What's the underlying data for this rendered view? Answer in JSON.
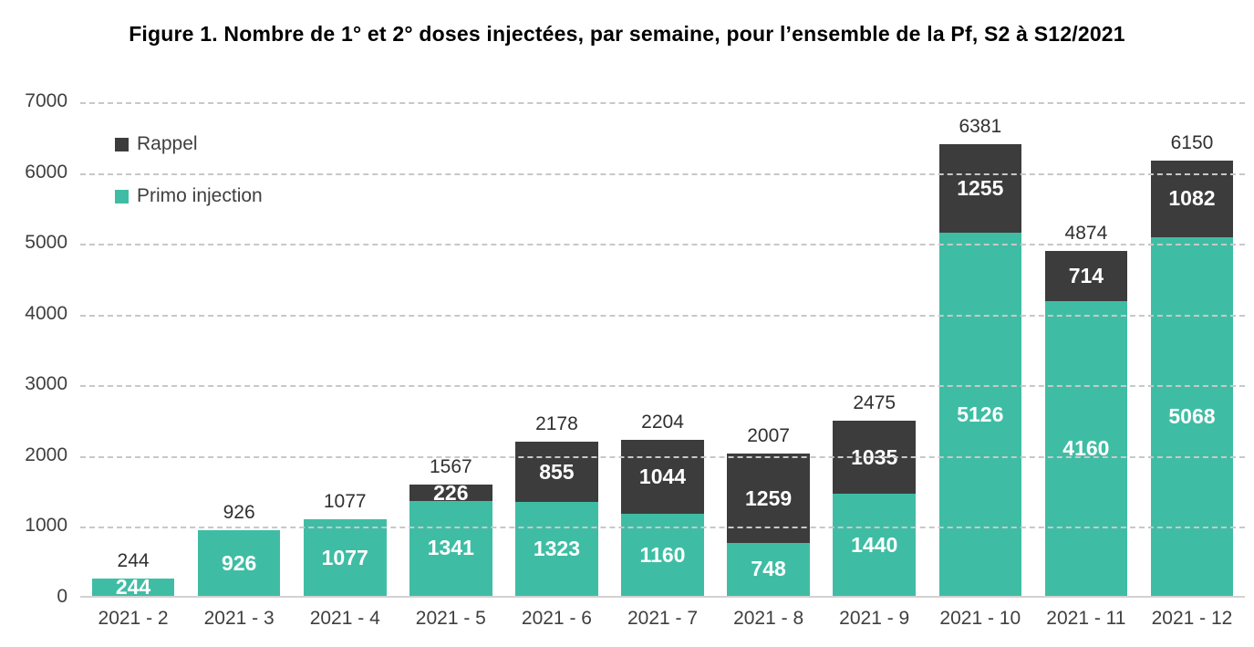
{
  "title": "Figure 1. Nombre de 1° et 2° doses injectées, par semaine, pour l’ensemble de la Pf, S2 à S12/2021",
  "chart_data": {
    "type": "bar",
    "stacked": true,
    "title": "Figure 1. Nombre de 1° et 2° doses injectées, par semaine, pour l’ensemble de la Pf, S2 à S12/2021",
    "categories": [
      "2021 - 2",
      "2021 - 3",
      "2021 - 4",
      "2021 - 5",
      "2021 - 6",
      "2021 - 7",
      "2021 - 8",
      "2021 - 9",
      "2021 - 10",
      "2021 - 11",
      "2021 - 12"
    ],
    "series": [
      {
        "name": "Primo injection",
        "color": "#3FBDA4",
        "values": [
          244,
          926,
          1077,
          1341,
          1323,
          1160,
          748,
          1440,
          5126,
          4160,
          5068
        ]
      },
      {
        "name": "Rappel",
        "color": "#3C3C3C",
        "values": [
          0,
          0,
          0,
          226,
          855,
          1044,
          1259,
          1035,
          1255,
          714,
          1082
        ]
      }
    ],
    "totals": [
      244,
      926,
      1077,
      1567,
      2178,
      2204,
      2007,
      2475,
      6381,
      4874,
      6150
    ],
    "y_ticks": [
      0,
      1000,
      2000,
      3000,
      4000,
      5000,
      6000,
      7000
    ],
    "ylim": [
      0,
      7000
    ],
    "xlabel": "",
    "ylabel": "",
    "grid": "horizontal-dashed",
    "legend_position": "top-left-inside",
    "legend": [
      {
        "label": "Rappel",
        "color": "#3C3C3C"
      },
      {
        "label": "Primo injection",
        "color": "#3FBDA4"
      }
    ]
  },
  "colors": {
    "primo": "#3FBDA4",
    "rappel": "#3C3C3C",
    "gridline": "#c8c8c8",
    "baseline": "#d2d2d2",
    "axis_text": "#3f3f3f",
    "total_text": "#303030",
    "segment_text": "#ffffff",
    "title_text": "#000000",
    "background": "#ffffff"
  }
}
